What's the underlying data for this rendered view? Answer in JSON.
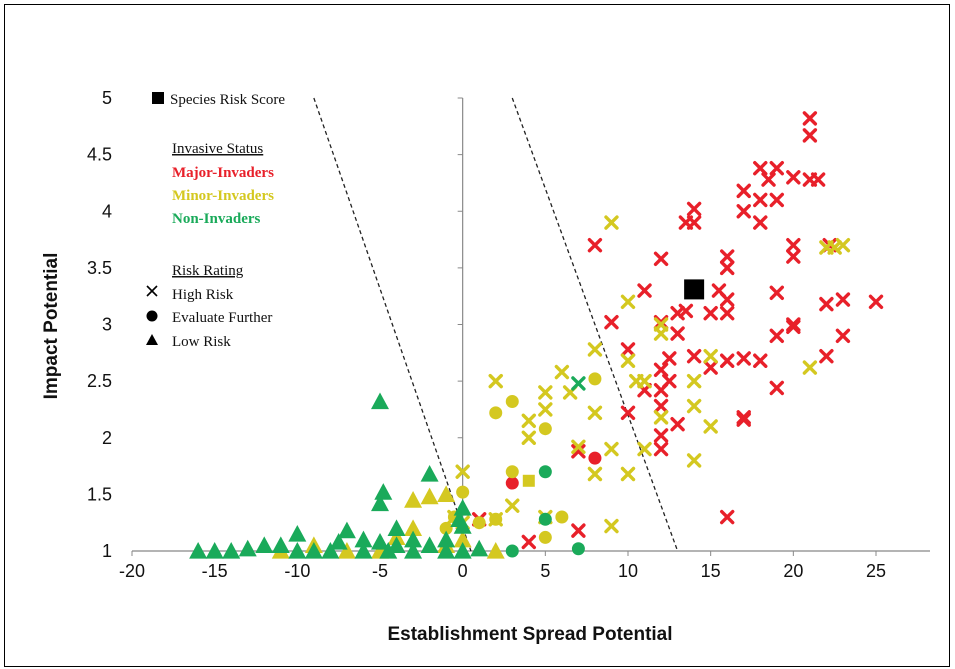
{
  "chart_data": {
    "type": "scatter",
    "title": "",
    "xlabel": "Establishment Spread Potential",
    "ylabel": "Impact Potential",
    "xlim": [
      -20,
      25
    ],
    "ylim": [
      1,
      5
    ],
    "x_ticks": [
      "-20",
      "-15",
      "-10",
      "-5",
      "0",
      "5",
      "10",
      "15",
      "20",
      "25"
    ],
    "y_ticks": [
      "1",
      "1.5",
      "2",
      "2.5",
      "3",
      "3.5",
      "4",
      "4.5",
      "5"
    ],
    "grid": false,
    "legend": {
      "score_label": "Species Risk Score",
      "status_title": "Invasive Status",
      "status": [
        {
          "label": "Major-Invaders",
          "color": "#e8202a"
        },
        {
          "label": "Minor-Invaders",
          "color": "#d4c820"
        },
        {
          "label": "Non-Invaders",
          "color": "#1aaa5a"
        }
      ],
      "rating_title": "Risk Rating",
      "ratings": [
        {
          "label": "High Risk",
          "marker": "x"
        },
        {
          "label": "Evaluate Further",
          "marker": "circle"
        },
        {
          "label": "Low Risk",
          "marker": "triangle"
        }
      ],
      "placement": "top-left"
    },
    "threshold_lines": [
      {
        "x1": -9,
        "y1": 5,
        "x2": 0.5,
        "y2": 1
      },
      {
        "x1": 3,
        "y1": 5,
        "x2": 13,
        "y2": 1
      }
    ],
    "species_risk_score": {
      "x": 14,
      "y": 3.31
    },
    "series": [
      {
        "name": "Major-Invaders",
        "color": "#e8202a",
        "high_risk": [
          [
            21,
            4.82
          ],
          [
            21,
            4.67
          ],
          [
            21,
            4.28
          ],
          [
            21.5,
            4.28
          ],
          [
            18,
            4.38
          ],
          [
            19,
            4.38
          ],
          [
            18.5,
            4.28
          ],
          [
            20,
            4.3
          ],
          [
            19,
            4.1
          ],
          [
            17,
            4.18
          ],
          [
            18,
            4.1
          ],
          [
            18,
            3.9
          ],
          [
            17,
            4.0
          ],
          [
            14,
            4.02
          ],
          [
            14,
            3.9
          ],
          [
            13.5,
            3.9
          ],
          [
            16,
            3.6
          ],
          [
            16,
            3.5
          ],
          [
            20,
            3.7
          ],
          [
            20,
            3.6
          ],
          [
            15.5,
            3.3
          ],
          [
            12,
            3.58
          ],
          [
            11,
            3.3
          ],
          [
            8,
            3.7
          ],
          [
            16,
            3.22
          ],
          [
            16,
            3.1
          ],
          [
            15,
            3.1
          ],
          [
            13.5,
            3.12
          ],
          [
            13,
            3.1
          ],
          [
            12,
            3.02
          ],
          [
            9,
            3.02
          ],
          [
            19,
            3.28
          ],
          [
            19,
            2.9
          ],
          [
            20,
            3.0
          ],
          [
            20,
            2.98
          ],
          [
            22,
            3.18
          ],
          [
            23,
            3.22
          ],
          [
            23,
            2.9
          ],
          [
            25,
            3.2
          ],
          [
            22,
            2.72
          ],
          [
            13,
            2.92
          ],
          [
            14,
            2.72
          ],
          [
            10,
            2.78
          ],
          [
            12.5,
            2.7
          ],
          [
            12,
            2.6
          ],
          [
            12.5,
            2.5
          ],
          [
            12,
            2.42
          ],
          [
            11,
            2.42
          ],
          [
            12,
            2.28
          ],
          [
            15,
            2.62
          ],
          [
            16,
            2.68
          ],
          [
            17,
            2.7
          ],
          [
            18,
            2.68
          ],
          [
            19,
            2.44
          ],
          [
            17,
            2.18
          ],
          [
            17,
            2.16
          ],
          [
            10,
            2.22
          ],
          [
            12,
            2.02
          ],
          [
            13,
            2.12
          ],
          [
            12,
            1.9
          ],
          [
            7,
            1.88
          ],
          [
            16,
            1.3
          ],
          [
            7,
            1.18
          ],
          [
            4,
            1.08
          ],
          [
            1,
            1.28
          ],
          [
            22.2,
            3.7
          ]
        ]
      },
      {
        "name": "Major-Invaders",
        "color": "#e8202a",
        "evaluate_further": [
          [
            3,
            1.6
          ],
          [
            8,
            1.82
          ]
        ]
      },
      {
        "name": "Minor-Invaders",
        "color": "#d4c820",
        "high_risk": [
          [
            9,
            3.9
          ],
          [
            10,
            3.2
          ],
          [
            12,
            3.0
          ],
          [
            12,
            2.92
          ],
          [
            8,
            2.78
          ],
          [
            10,
            2.68
          ],
          [
            10.5,
            2.5
          ],
          [
            11,
            2.5
          ],
          [
            14,
            2.5
          ],
          [
            15,
            2.72
          ],
          [
            14,
            2.28
          ],
          [
            15,
            2.1
          ],
          [
            12,
            2.18
          ],
          [
            11,
            1.9
          ],
          [
            14,
            1.8
          ],
          [
            8,
            2.22
          ],
          [
            9,
            1.9
          ],
          [
            10,
            1.68
          ],
          [
            8,
            1.68
          ],
          [
            7,
            1.92
          ],
          [
            4,
            2.15
          ],
          [
            4,
            2.0
          ],
          [
            5,
            2.25
          ],
          [
            5,
            2.4
          ],
          [
            6,
            2.58
          ],
          [
            2,
            2.5
          ],
          [
            0,
            1.7
          ],
          [
            3,
            1.4
          ],
          [
            5,
            1.3
          ],
          [
            9,
            1.22
          ],
          [
            2,
            1.28
          ],
          [
            0,
            1.25
          ],
          [
            -0.5,
            1.3
          ],
          [
            21,
            2.62
          ],
          [
            23,
            3.7
          ],
          [
            22.5,
            3.68
          ],
          [
            22,
            3.68
          ],
          [
            6.5,
            2.4
          ]
        ]
      },
      {
        "name": "Minor-Invaders",
        "color": "#d4c820",
        "evaluate_further": [
          [
            3,
            2.32
          ],
          [
            2,
            2.22
          ],
          [
            8,
            2.52
          ],
          [
            5,
            2.08
          ],
          [
            3,
            1.7
          ],
          [
            0,
            1.52
          ],
          [
            -0.5,
            1.3
          ],
          [
            2,
            1.28
          ],
          [
            5,
            1.12
          ],
          [
            6,
            1.3
          ],
          [
            -1,
            1.2
          ],
          [
            1,
            1.25
          ]
        ],
        "low_risk": [
          [
            -1,
            1.5
          ],
          [
            -2,
            1.48
          ],
          [
            -3,
            1.45
          ],
          [
            -3,
            1.2
          ],
          [
            -4,
            1.12
          ],
          [
            -5,
            1.0
          ],
          [
            -9,
            1.05
          ],
          [
            -11,
            1.0
          ],
          [
            -7,
            1.0
          ],
          [
            2,
            1.0
          ],
          [
            0,
            1.1
          ],
          [
            -1,
            1.05
          ]
        ],
        "square": [
          [
            4,
            1.62
          ]
        ]
      },
      {
        "name": "Non-Invaders",
        "color": "#1aaa5a",
        "high_risk": [
          [
            7,
            2.48
          ]
        ],
        "evaluate_further": [
          [
            5,
            1.7
          ],
          [
            5,
            1.28
          ],
          [
            3,
            1.0
          ],
          [
            7,
            1.02
          ]
        ],
        "low_risk": [
          [
            -5,
            2.32
          ],
          [
            -2,
            1.68
          ],
          [
            -4.8,
            1.52
          ],
          [
            -5,
            1.42
          ],
          [
            0,
            1.38
          ],
          [
            -0.2,
            1.28
          ],
          [
            0,
            1.22
          ],
          [
            -4,
            1.2
          ],
          [
            -7,
            1.18
          ],
          [
            -3,
            1.1
          ],
          [
            -6,
            1.1
          ],
          [
            -10,
            1.15
          ],
          [
            -1,
            1.1
          ],
          [
            -12,
            1.05
          ],
          [
            -13,
            1.02
          ],
          [
            -5,
            1.08
          ],
          [
            -7.5,
            1.08
          ],
          [
            -11,
            1.05
          ],
          [
            -4,
            1.05
          ],
          [
            -2,
            1.05
          ],
          [
            -9,
            1.0
          ],
          [
            -14,
            1.0
          ],
          [
            -16,
            1.0
          ],
          [
            -10,
            1.0
          ],
          [
            -15,
            1.0
          ],
          [
            -8,
            1.0
          ],
          [
            -6,
            1.0
          ],
          [
            -3,
            1.0
          ],
          [
            0,
            1.0
          ],
          [
            1,
            1.02
          ],
          [
            -1,
            1.0
          ],
          [
            -4.5,
            1.0
          ]
        ]
      }
    ]
  }
}
